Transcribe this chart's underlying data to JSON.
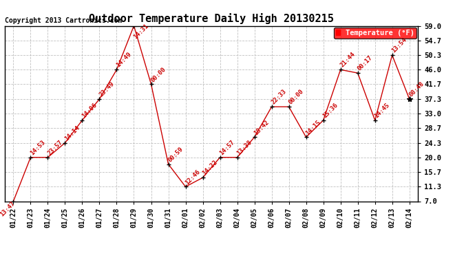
{
  "title": "Outdoor Temperature Daily High 20130215",
  "copyright": "Copyright 2013 Cartronics.com",
  "legend_label": "Temperature (°F)",
  "x_labels": [
    "01/22",
    "01/23",
    "01/24",
    "01/25",
    "01/26",
    "01/27",
    "01/28",
    "01/29",
    "01/30",
    "01/31",
    "02/01",
    "02/02",
    "02/03",
    "02/04",
    "02/05",
    "02/06",
    "02/07",
    "02/08",
    "02/09",
    "02/10",
    "02/11",
    "02/12",
    "02/13",
    "02/14"
  ],
  "y_values": [
    7.0,
    20.0,
    20.0,
    24.3,
    31.0,
    37.3,
    46.0,
    59.0,
    41.7,
    18.0,
    11.3,
    14.0,
    20.0,
    20.0,
    26.0,
    35.0,
    35.0,
    26.0,
    31.0,
    46.0,
    45.0,
    31.0,
    50.3,
    37.3
  ],
  "point_labels": [
    "13:47",
    "14:53",
    "23:57",
    "14:14",
    "14:06",
    "23:49",
    "14:49",
    "14:31",
    "00:00",
    "00:59",
    "12:46",
    "14:22",
    "14:57",
    "13:38",
    "18:42",
    "22:33",
    "00:00",
    "14:15",
    "15:36",
    "21:44",
    "00:17",
    "14:45",
    "13:54",
    "08:48"
  ],
  "line_color": "#cc0000",
  "point_color": "black",
  "label_color": "#cc0000",
  "bg_color": "white",
  "grid_color": "#c0c0c0",
  "ylim": [
    7.0,
    59.0
  ],
  "yticks": [
    7.0,
    11.3,
    15.7,
    20.0,
    24.3,
    28.7,
    33.0,
    37.3,
    41.7,
    46.0,
    50.3,
    54.7,
    59.0
  ]
}
